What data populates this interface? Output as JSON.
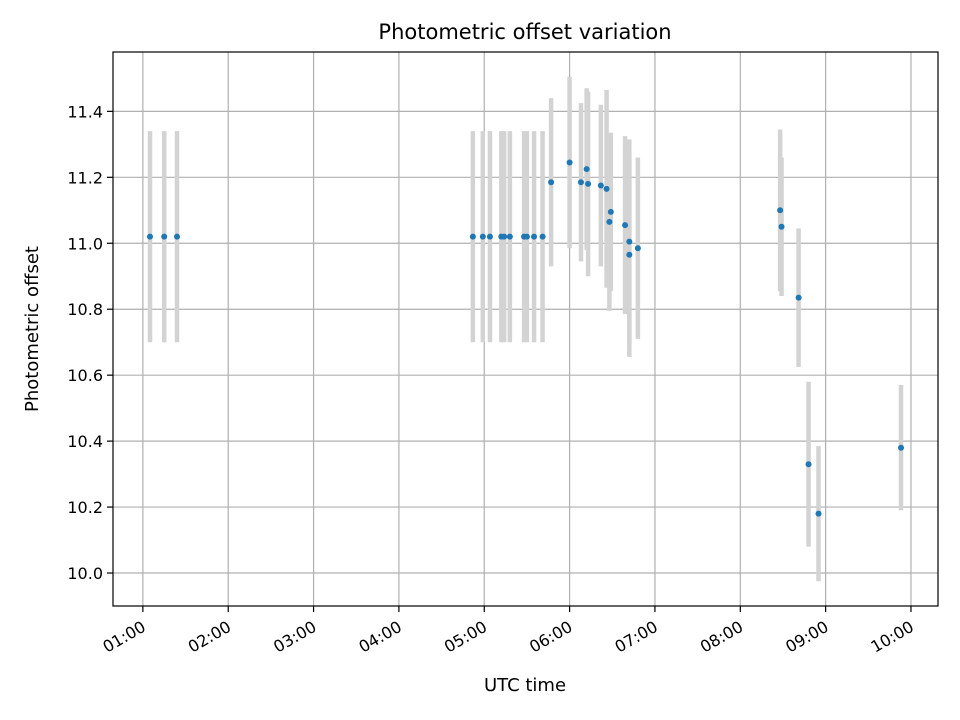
{
  "chart_data": {
    "type": "scatter",
    "title": "Photometric offset variation",
    "xlabel": "UTC time",
    "ylabel": "Photometric offset",
    "x_unit": "time of day (HH:MM)",
    "xlim": [
      "00:39",
      "10:19"
    ],
    "ylim": [
      9.9,
      11.58
    ],
    "x_ticks": [
      "01:00",
      "02:00",
      "03:00",
      "04:00",
      "05:00",
      "06:00",
      "07:00",
      "08:00",
      "09:00",
      "10:00"
    ],
    "y_ticks": [
      "10.0",
      "10.2",
      "10.4",
      "10.6",
      "10.8",
      "11.0",
      "11.2",
      "11.4"
    ],
    "grid": true,
    "colors": {
      "marker": "#1f77b4",
      "errorbar": "#d3d3d3",
      "grid": "#b0b0b0"
    },
    "series": [
      {
        "points": [
          {
            "x": "01:05",
            "y": 11.02,
            "err": 0.32
          },
          {
            "x": "01:15",
            "y": 11.02,
            "err": 0.32
          },
          {
            "x": "01:24",
            "y": 11.02,
            "err": 0.32
          },
          {
            "x": "04:52",
            "y": 11.02,
            "err": 0.32
          },
          {
            "x": "04:59",
            "y": 11.02,
            "err": 0.32
          },
          {
            "x": "05:04",
            "y": 11.02,
            "err": 0.32
          },
          {
            "x": "05:12",
            "y": 11.02,
            "err": 0.32
          },
          {
            "x": "05:14",
            "y": 11.02,
            "err": 0.32
          },
          {
            "x": "05:18",
            "y": 11.02,
            "err": 0.32
          },
          {
            "x": "05:28",
            "y": 11.02,
            "err": 0.32
          },
          {
            "x": "05:30",
            "y": 11.02,
            "err": 0.32
          },
          {
            "x": "05:35",
            "y": 11.02,
            "err": 0.32
          },
          {
            "x": "05:41",
            "y": 11.02,
            "err": 0.32
          },
          {
            "x": "05:47",
            "y": 11.185,
            "err": 0.255
          },
          {
            "x": "06:00",
            "y": 11.245,
            "err": 0.26
          },
          {
            "x": "06:08",
            "y": 11.185,
            "err": 0.24
          },
          {
            "x": "06:12",
            "y": 11.225,
            "err": 0.245
          },
          {
            "x": "06:13",
            "y": 11.18,
            "err": 0.28
          },
          {
            "x": "06:22",
            "y": 11.175,
            "err": 0.245
          },
          {
            "x": "06:26",
            "y": 11.165,
            "err": 0.3
          },
          {
            "x": "06:28",
            "y": 11.065,
            "err": 0.27
          },
          {
            "x": "06:29",
            "y": 11.095,
            "err": 0.24
          },
          {
            "x": "06:39",
            "y": 11.055,
            "err": 0.27
          },
          {
            "x": "06:42",
            "y": 10.965,
            "err": 0.31
          },
          {
            "x": "06:42",
            "y": 11.005,
            "err": 0.31
          },
          {
            "x": "06:48",
            "y": 10.985,
            "err": 0.275
          },
          {
            "x": "08:28",
            "y": 11.1,
            "err": 0.245
          },
          {
            "x": "08:29",
            "y": 11.05,
            "err": 0.21
          },
          {
            "x": "08:41",
            "y": 10.835,
            "err": 0.21
          },
          {
            "x": "08:48",
            "y": 10.33,
            "err": 0.25
          },
          {
            "x": "08:55",
            "y": 10.18,
            "err": 0.205
          },
          {
            "x": "09:53",
            "y": 10.38,
            "err": 0.19
          }
        ]
      }
    ]
  }
}
